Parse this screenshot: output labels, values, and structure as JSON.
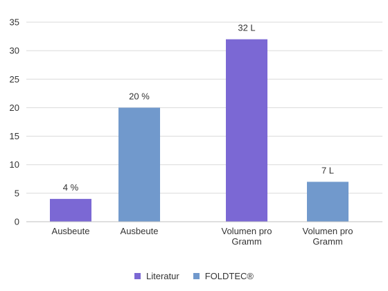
{
  "chart_data": {
    "type": "bar",
    "title": "",
    "xlabel": "",
    "ylabel": "",
    "ylim": [
      0,
      35
    ],
    "yticks": [
      0,
      5,
      10,
      15,
      20,
      25,
      30,
      35
    ],
    "grid": true,
    "legend_position": "bottom",
    "bars": [
      {
        "category": [
          "Ausbeute"
        ],
        "series": "Literatur",
        "value": 4,
        "label": "4 %"
      },
      {
        "category": [
          "Ausbeute"
        ],
        "series": "FOLDTEC®",
        "value": 20,
        "label": "20 %"
      },
      {
        "category": [
          "Volumen pro",
          "Gramm"
        ],
        "series": "Literatur",
        "value": 32,
        "label": "32 L"
      },
      {
        "category": [
          "Volumen pro",
          "Gramm"
        ],
        "series": "FOLDTEC®",
        "value": 7,
        "label": "7 L"
      }
    ],
    "series": [
      {
        "name": "Literatur",
        "color": "#7b68d4"
      },
      {
        "name": "FOLDTEC®",
        "color": "#7199cc"
      }
    ]
  }
}
